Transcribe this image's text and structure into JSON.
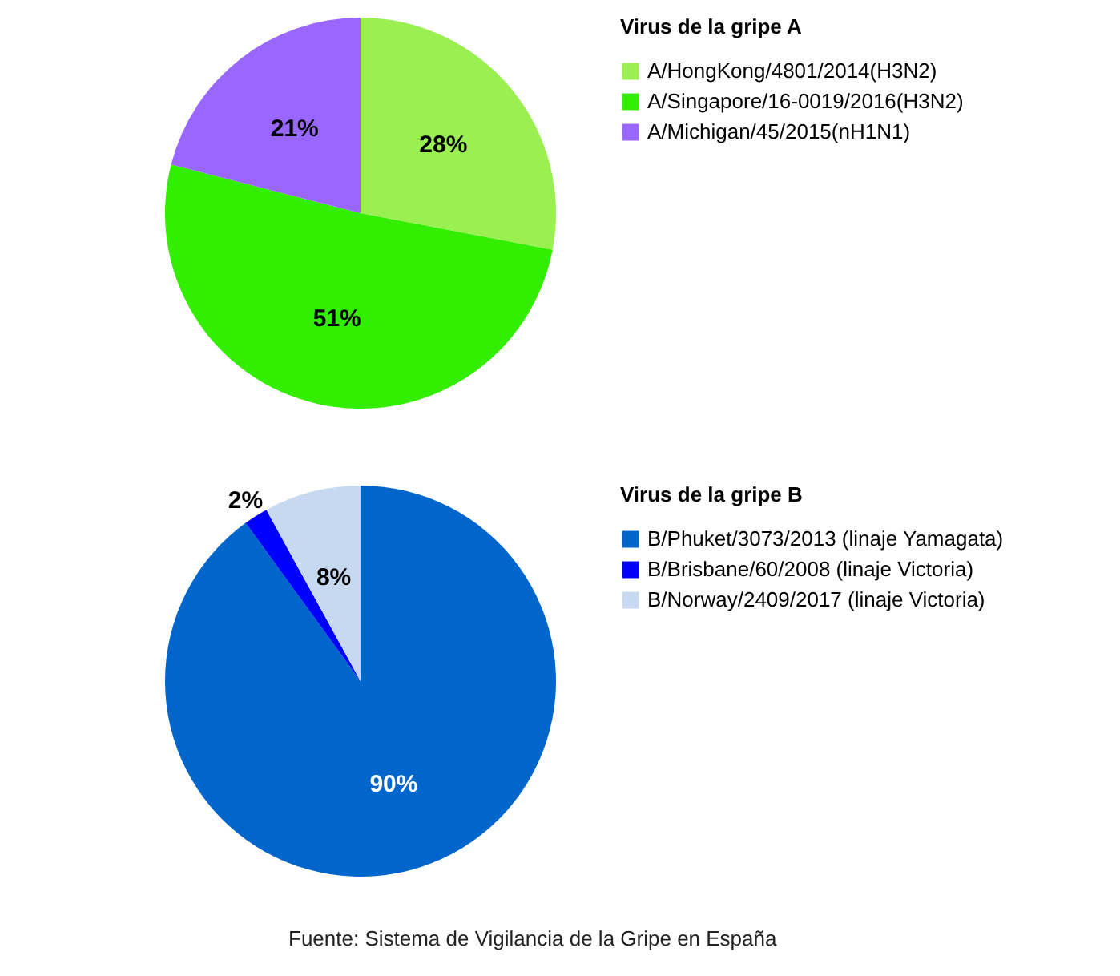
{
  "chart_data": [
    {
      "type": "pie",
      "legend_title": "Virus de la gripe A",
      "categories": [
        "A/HongKong/4801/2014(H3N2)",
        "A/Singapore/16-0019/2016(H3N2)",
        "A/Michigan/45/2015(nH1N1)"
      ],
      "values": [
        28,
        51,
        21
      ],
      "colors": [
        "#99f050",
        "#33ee00",
        "#9966ff"
      ],
      "value_labels": [
        "28%",
        "51%",
        "21%"
      ],
      "legend": "right"
    },
    {
      "type": "pie",
      "legend_title": "Virus de la gripe B",
      "categories": [
        "B/Phuket/3073/2013 (linaje Yamagata)",
        "B/Brisbane/60/2008 (linaje Victoria)",
        "B/Norway/2409/2017 (linaje Victoria)"
      ],
      "values": [
        90,
        2,
        8
      ],
      "colors": [
        "#0066cc",
        "#0000ff",
        "#c6d9f1"
      ],
      "value_labels": [
        "90%",
        "2%",
        "8%"
      ],
      "legend": "right",
      "annotations": [
        "Fuente:  Sistema de Vigilancia de la Gripe en España"
      ]
    }
  ]
}
